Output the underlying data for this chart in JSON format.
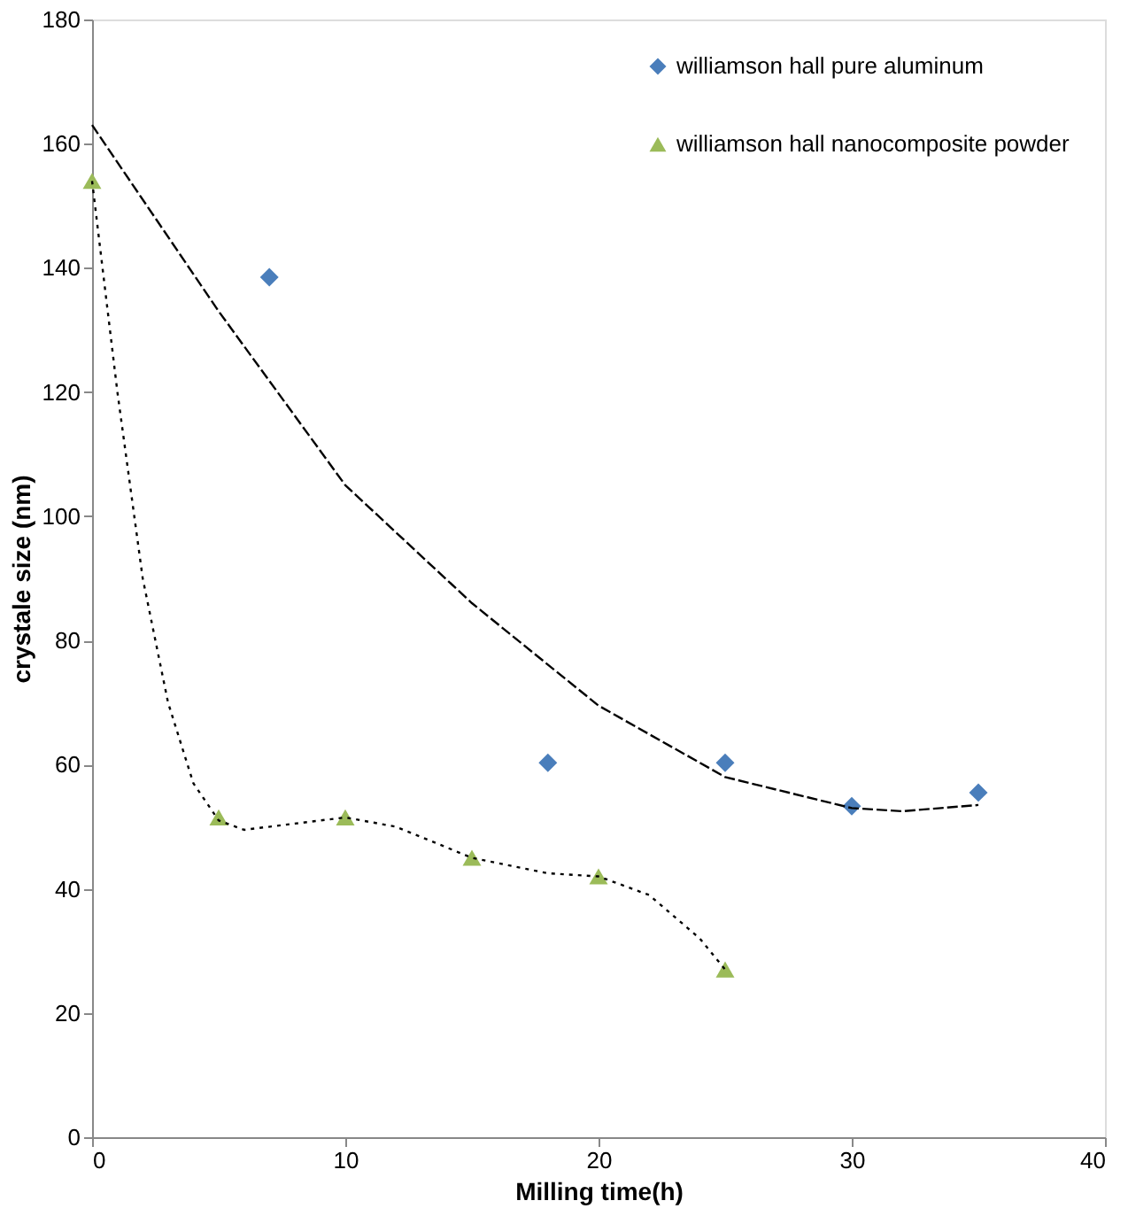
{
  "chart_data": {
    "type": "scatter",
    "xlabel": "Milling time(h)",
    "ylabel": "crystale size (nm)",
    "xlim": [
      0,
      40
    ],
    "xticks": [
      0,
      10,
      20,
      30,
      40
    ],
    "ylim": [
      0,
      180
    ],
    "yticks": [
      0,
      20,
      40,
      60,
      80,
      100,
      120,
      140,
      160,
      180
    ],
    "grid": false,
    "legend": "top right",
    "series": [
      {
        "name": "williamson hall pure aluminum",
        "color": "#4a7ebb",
        "marker": "diamond",
        "x": [
          7,
          18,
          25,
          30,
          35
        ],
        "values": [
          138.5,
          60.3,
          60.3,
          53.3,
          55.5
        ]
      },
      {
        "name": "williamson hall nanocomposite powder",
        "color": "#9bbb59",
        "marker": "triangle",
        "x": [
          0,
          5,
          10,
          15,
          20,
          25
        ],
        "values": [
          154,
          51.5,
          51.5,
          45,
          42,
          27
        ]
      },
      {
        "color": "#000000",
        "type": "line",
        "line_style": "dashed",
        "x": [
          0,
          5,
          10,
          15,
          20,
          25,
          30,
          32,
          35
        ],
        "values": [
          163,
          133,
          105,
          86,
          69.5,
          58,
          53,
          52.5,
          53.5
        ]
      },
      {
        "color": "#000000",
        "type": "line",
        "line_style": "dotted",
        "x": [
          0,
          1,
          2,
          3,
          4,
          5,
          6,
          8,
          10,
          12,
          15,
          18,
          20,
          22,
          24,
          25
        ],
        "values": [
          154,
          120,
          90,
          70,
          57,
          51,
          49.5,
          50.5,
          51.5,
          50,
          45,
          42.5,
          42,
          39,
          32,
          27
        ]
      }
    ]
  }
}
